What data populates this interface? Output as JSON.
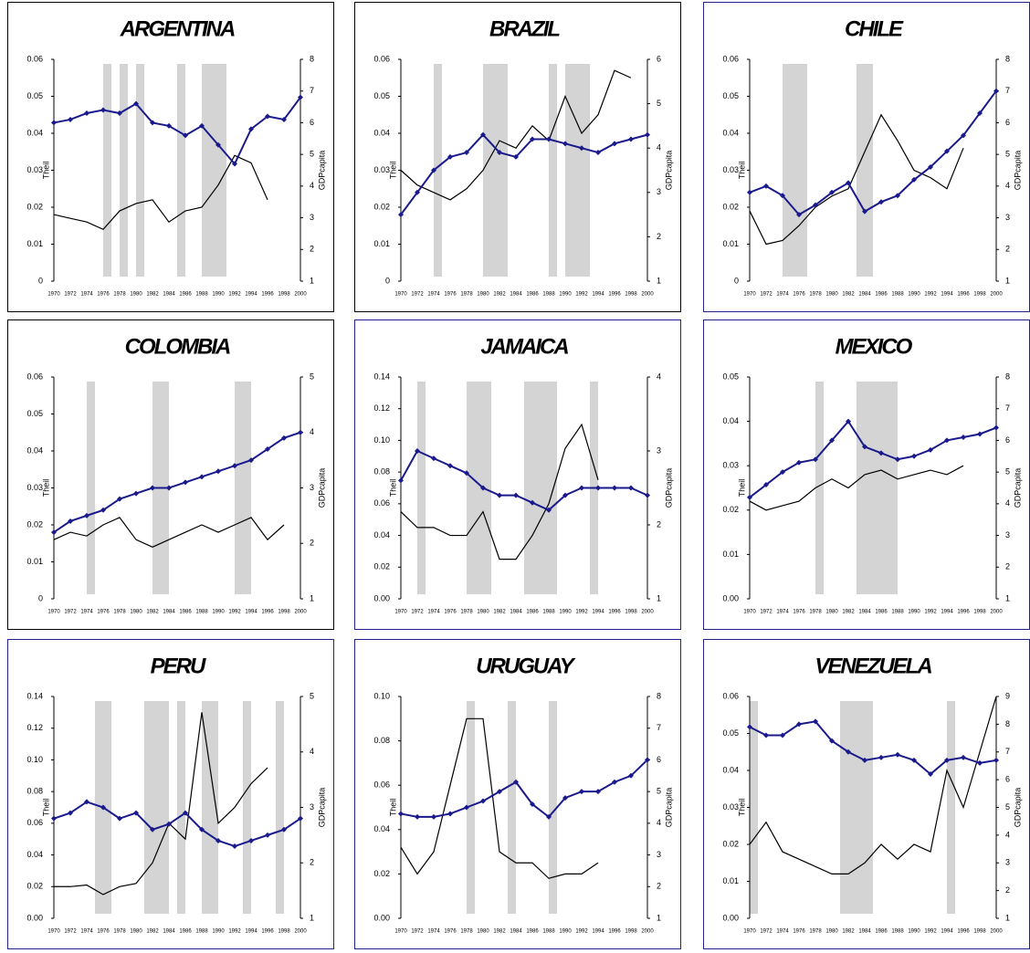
{
  "chart_data": [
    {
      "type": "line",
      "title": "ARGENTINA",
      "ylabel": "Theil",
      "y2label": "GDPcapita",
      "border": "#000000",
      "x": [
        1970,
        1972,
        1974,
        1976,
        1978,
        1980,
        1982,
        1984,
        1986,
        1988,
        1990,
        1992,
        1994,
        1996,
        1998,
        2000
      ],
      "xlim": [
        1970,
        2000
      ],
      "ylim": [
        0,
        0.06
      ],
      "yticks": [
        0,
        0.01,
        0.02,
        0.03,
        0.04,
        0.05,
        0.06
      ],
      "y2lim": [
        1,
        8
      ],
      "y2ticks": [
        1,
        2,
        3,
        4,
        5,
        6,
        7,
        8
      ],
      "shaded": [
        [
          1976,
          1977
        ],
        [
          1978,
          1979
        ],
        [
          1980,
          1981
        ],
        [
          1985,
          1986
        ],
        [
          1988,
          1991
        ]
      ],
      "shade_color": "#d4d4d4",
      "series": [
        {
          "color": "#000000",
          "values": [
            0.018,
            0.017,
            0.016,
            0.014,
            0.019,
            0.021,
            0.022,
            0.016,
            0.019,
            0.02,
            0.026,
            0.034,
            0.032,
            0.022,
            null,
            null
          ]
        },
        {
          "color": "#1a1a8c",
          "axis": "y2",
          "values": [
            6.0,
            6.1,
            6.3,
            6.4,
            6.3,
            6.6,
            6.0,
            5.9,
            5.6,
            5.9,
            5.3,
            4.7,
            5.8,
            6.2,
            6.1,
            6.8
          ]
        }
      ]
    },
    {
      "type": "line",
      "title": "BRAZIL",
      "ylabel": "Theil",
      "y2label": "GDPcapita",
      "border": "#000000",
      "x": [
        1970,
        1972,
        1974,
        1976,
        1978,
        1980,
        1982,
        1984,
        1986,
        1988,
        1990,
        1992,
        1994,
        1996,
        1998,
        2000
      ],
      "xlim": [
        1970,
        2000
      ],
      "ylim": [
        0,
        0.06
      ],
      "yticks": [
        0,
        0.01,
        0.02,
        0.03,
        0.04,
        0.05,
        0.06
      ],
      "y2lim": [
        1,
        6
      ],
      "y2ticks": [
        1,
        2,
        3,
        4,
        5,
        6
      ],
      "shaded": [
        [
          1974,
          1975
        ],
        [
          1980,
          1983
        ],
        [
          1988,
          1989
        ],
        [
          1990,
          1993
        ]
      ],
      "shade_color": "#d4d4d4",
      "series": [
        {
          "color": "#000000",
          "values": [
            0.03,
            0.026,
            0.024,
            0.022,
            0.025,
            0.03,
            0.038,
            0.036,
            0.042,
            0.038,
            0.05,
            0.04,
            0.045,
            0.057,
            0.055,
            null
          ]
        },
        {
          "color": "#1a1a8c",
          "axis": "y2",
          "values": [
            2.5,
            3.0,
            3.5,
            3.8,
            3.9,
            4.3,
            3.9,
            3.8,
            4.2,
            4.2,
            4.1,
            4.0,
            3.9,
            4.1,
            4.2,
            4.3
          ]
        }
      ]
    },
    {
      "type": "line",
      "title": "CHILE",
      "ylabel": "Theil",
      "y2label": "GDPcapita",
      "border": "#22228a",
      "x": [
        1970,
        1972,
        1974,
        1976,
        1978,
        1980,
        1982,
        1984,
        1986,
        1988,
        1990,
        1992,
        1994,
        1996,
        1998,
        2000
      ],
      "xlim": [
        1970,
        2000
      ],
      "ylim": [
        0,
        0.06
      ],
      "yticks": [
        0,
        0.01,
        0.02,
        0.03,
        0.04,
        0.05,
        0.06
      ],
      "y2lim": [
        1,
        8
      ],
      "y2ticks": [
        1,
        2,
        3,
        4,
        5,
        6,
        7,
        8
      ],
      "shaded": [
        [
          1974,
          1977
        ],
        [
          1983,
          1985
        ]
      ],
      "shade_color": "#d4d4d4",
      "series": [
        {
          "color": "#000000",
          "values": [
            0.019,
            0.01,
            0.011,
            0.015,
            0.02,
            0.023,
            0.025,
            0.035,
            0.045,
            0.038,
            0.03,
            0.028,
            0.025,
            0.036,
            null,
            null
          ]
        },
        {
          "color": "#1a1a8c",
          "axis": "y2",
          "values": [
            3.8,
            4.0,
            3.7,
            3.1,
            3.4,
            3.8,
            4.1,
            3.2,
            3.5,
            3.7,
            4.2,
            4.6,
            5.1,
            5.6,
            6.3,
            7.0
          ]
        }
      ]
    },
    {
      "type": "line",
      "title": "COLOMBIA",
      "ylabel": "Theil",
      "y2label": "GDPcapita",
      "border": "#000000",
      "x": [
        1970,
        1972,
        1974,
        1976,
        1978,
        1980,
        1982,
        1984,
        1986,
        1988,
        1990,
        1992,
        1994,
        1996,
        1998,
        2000
      ],
      "xlim": [
        1970,
        2000
      ],
      "ylim": [
        0,
        0.06
      ],
      "yticks": [
        0,
        0.01,
        0.02,
        0.03,
        0.04,
        0.05,
        0.06
      ],
      "y2lim": [
        1,
        5
      ],
      "y2ticks": [
        1,
        2,
        3,
        4,
        5
      ],
      "shaded": [
        [
          1974,
          1975
        ],
        [
          1982,
          1984
        ],
        [
          1992,
          1994
        ]
      ],
      "shade_color": "#d4d4d4",
      "series": [
        {
          "color": "#000000",
          "values": [
            0.016,
            0.018,
            0.017,
            0.02,
            0.022,
            0.016,
            0.014,
            0.016,
            0.018,
            0.02,
            0.018,
            0.02,
            0.022,
            0.016,
            0.02,
            null
          ]
        },
        {
          "color": "#1a1a8c",
          "axis": "y2",
          "values": [
            2.2,
            2.4,
            2.5,
            2.6,
            2.8,
            2.9,
            3.0,
            3.0,
            3.1,
            3.2,
            3.3,
            3.4,
            3.5,
            3.7,
            3.9,
            4.0
          ]
        }
      ]
    },
    {
      "type": "line",
      "title": "JAMAICA",
      "ylabel": "Theil",
      "y2label": "GDPcapita",
      "border": "#22228a",
      "x": [
        1970,
        1972,
        1974,
        1976,
        1978,
        1980,
        1982,
        1984,
        1986,
        1988,
        1990,
        1992,
        1994,
        1996,
        1998,
        2000
      ],
      "xlim": [
        1970,
        2000
      ],
      "ylim": [
        0,
        0.14
      ],
      "yticks": [
        {
          "value": 0,
          "label": "0.00"
        },
        0.02,
        0.04,
        0.06,
        0.08,
        {
          "value": 0.1,
          "label": "0.10"
        },
        0.12,
        0.14
      ],
      "y2lim": [
        1,
        4
      ],
      "y2ticks": [
        1,
        2,
        3,
        4
      ],
      "shaded": [
        [
          1972,
          1973
        ],
        [
          1978,
          1981
        ],
        [
          1985,
          1989
        ],
        [
          1993,
          1994
        ]
      ],
      "shade_color": "#d4d4d4",
      "series": [
        {
          "color": "#000000",
          "values": [
            0.055,
            0.045,
            0.045,
            0.04,
            0.04,
            0.055,
            0.025,
            0.025,
            0.04,
            0.06,
            0.095,
            0.11,
            0.075,
            null,
            null,
            null
          ]
        },
        {
          "color": "#1a1a8c",
          "axis": "y2",
          "values": [
            2.6,
            3.0,
            2.9,
            2.8,
            2.7,
            2.5,
            2.4,
            2.4,
            2.3,
            2.2,
            2.4,
            2.5,
            2.5,
            2.5,
            2.5,
            2.4
          ]
        }
      ]
    },
    {
      "type": "line",
      "title": "MEXICO",
      "ylabel": "Theil",
      "y2label": "GDPcapita",
      "border": "#22228a",
      "x": [
        1970,
        1972,
        1974,
        1976,
        1978,
        1980,
        1982,
        1984,
        1986,
        1988,
        1990,
        1992,
        1994,
        1996,
        1998,
        2000
      ],
      "xlim": [
        1970,
        2000
      ],
      "ylim": [
        0,
        0.05
      ],
      "yticks": [
        {
          "value": 0,
          "label": "0.00"
        },
        0.01,
        0.02,
        0.03,
        0.04,
        0.05
      ],
      "y2lim": [
        1,
        8
      ],
      "y2ticks": [
        1,
        2,
        3,
        4,
        5,
        6,
        7,
        8
      ],
      "shaded": [
        [
          1978,
          1979
        ],
        [
          1983,
          1988
        ]
      ],
      "shade_color": "#d4d4d4",
      "series": [
        {
          "color": "#000000",
          "values": [
            0.022,
            0.02,
            0.021,
            0.022,
            0.025,
            0.027,
            0.025,
            0.028,
            0.029,
            0.027,
            0.028,
            0.029,
            0.028,
            0.03,
            null,
            null
          ]
        },
        {
          "color": "#1a1a8c",
          "axis": "y2",
          "values": [
            4.2,
            4.6,
            5.0,
            5.3,
            5.4,
            6.0,
            6.6,
            5.8,
            5.6,
            5.4,
            5.5,
            5.7,
            6.0,
            6.1,
            6.2,
            6.4
          ]
        }
      ]
    },
    {
      "type": "line",
      "title": "PERU",
      "ylabel": "Theil",
      "y2label": "GDPcapita",
      "border": "#22228a",
      "x": [
        1970,
        1972,
        1974,
        1976,
        1978,
        1980,
        1982,
        1984,
        1986,
        1988,
        1990,
        1992,
        1994,
        1996,
        1998,
        2000
      ],
      "xlim": [
        1970,
        2000
      ],
      "ylim": [
        0,
        0.14
      ],
      "yticks": [
        {
          "value": 0,
          "label": "0.00"
        },
        0.02,
        0.04,
        0.06,
        0.08,
        {
          "value": 0.1,
          "label": "0.10"
        },
        0.12,
        0.14
      ],
      "y2lim": [
        1,
        5
      ],
      "y2ticks": [
        1,
        2,
        3,
        4,
        5
      ],
      "shaded": [
        [
          1975,
          1977
        ],
        [
          1981,
          1984
        ],
        [
          1985,
          1986
        ],
        [
          1988,
          1990
        ],
        [
          1993,
          1994
        ],
        [
          1997,
          1998
        ]
      ],
      "shade_color": "#d4d4d4",
      "series": [
        {
          "color": "#000000",
          "values": [
            0.02,
            0.02,
            0.021,
            0.015,
            0.02,
            0.022,
            0.035,
            0.06,
            0.05,
            0.13,
            0.06,
            0.07,
            0.085,
            0.095,
            null,
            null
          ]
        },
        {
          "color": "#1a1a8c",
          "axis": "y2",
          "values": [
            2.8,
            2.9,
            3.1,
            3.0,
            2.8,
            2.9,
            2.6,
            2.7,
            2.9,
            2.6,
            2.4,
            2.3,
            2.4,
            2.5,
            2.6,
            2.8
          ]
        }
      ]
    },
    {
      "type": "line",
      "title": "URUGUAY",
      "ylabel": "Theil",
      "y2label": "GDPcapita",
      "border": "#22228a",
      "x": [
        1970,
        1972,
        1974,
        1976,
        1978,
        1980,
        1982,
        1984,
        1986,
        1988,
        1990,
        1992,
        1994,
        1996,
        1998,
        2000
      ],
      "xlim": [
        1970,
        2000
      ],
      "ylim": [
        0,
        0.1
      ],
      "yticks": [
        {
          "value": 0,
          "label": "0.00"
        },
        0.02,
        0.04,
        0.06,
        0.08,
        {
          "value": 0.1,
          "label": "0.10"
        }
      ],
      "y2lim": [
        1,
        8
      ],
      "y2ticks": [
        1,
        2,
        3,
        4,
        5,
        6,
        7,
        8
      ],
      "shaded": [
        [
          1978,
          1979
        ],
        [
          1983,
          1984
        ],
        [
          1988,
          1989
        ]
      ],
      "shade_color": "#d4d4d4",
      "series": [
        {
          "color": "#000000",
          "values": [
            0.032,
            0.02,
            0.03,
            0.06,
            0.09,
            0.09,
            0.03,
            0.025,
            0.025,
            0.018,
            0.02,
            0.02,
            0.025,
            null,
            null,
            null
          ]
        },
        {
          "color": "#1a1a8c",
          "axis": "y2",
          "values": [
            4.3,
            4.2,
            4.2,
            4.3,
            4.5,
            4.7,
            5.0,
            5.3,
            4.6,
            4.2,
            4.8,
            5.0,
            5.0,
            5.3,
            5.5,
            6.0
          ]
        }
      ]
    },
    {
      "type": "line",
      "title": "VENEZUELA",
      "ylabel": "Theil",
      "y2label": "GDPcapita",
      "border": "#22228a",
      "x": [
        1970,
        1972,
        1974,
        1976,
        1978,
        1980,
        1982,
        1984,
        1986,
        1988,
        1990,
        1992,
        1994,
        1996,
        1998,
        2000
      ],
      "xlim": [
        1970,
        2000
      ],
      "ylim": [
        0,
        0.06
      ],
      "yticks": [
        {
          "value": 0,
          "label": "0.00"
        },
        0.01,
        0.02,
        0.03,
        0.04,
        0.05,
        0.06
      ],
      "y2lim": [
        1,
        9
      ],
      "y2ticks": [
        1,
        2,
        3,
        4,
        5,
        6,
        7,
        8,
        9
      ],
      "shaded": [
        [
          1970,
          1971
        ],
        [
          1981,
          1985
        ],
        [
          1994,
          1995
        ]
      ],
      "shade_color": "#d4d4d4",
      "series": [
        {
          "color": "#000000",
          "values": [
            0.02,
            0.026,
            0.018,
            0.016,
            0.014,
            0.012,
            0.012,
            0.015,
            0.02,
            0.016,
            0.02,
            0.018,
            0.04,
            0.03,
            0.045,
            0.06
          ]
        },
        {
          "color": "#1a1a8c",
          "axis": "y2",
          "values": [
            7.9,
            7.6,
            7.6,
            8.0,
            8.1,
            7.4,
            7.0,
            6.7,
            6.8,
            6.9,
            6.7,
            6.2,
            6.7,
            6.8,
            6.6,
            6.7
          ]
        }
      ]
    }
  ]
}
